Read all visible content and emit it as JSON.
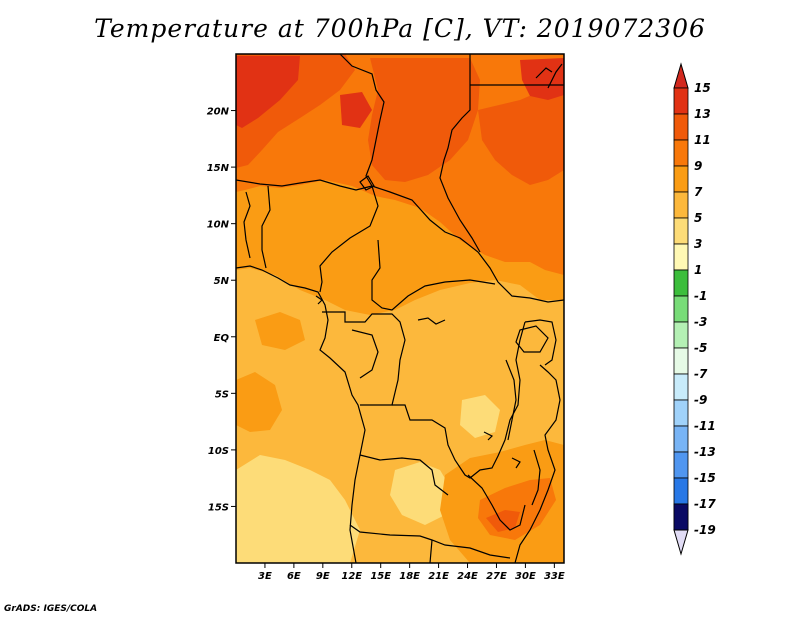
{
  "title": "Temperature at 700hPa [C], VT: 2019072306",
  "credit": "GrADS: IGES/COLA",
  "map": {
    "lon_range": [
      0,
      34
    ],
    "lat_range": [
      -20,
      25
    ],
    "lon_ticks": [
      {
        "value": 3,
        "label": "3E"
      },
      {
        "value": 6,
        "label": "6E"
      },
      {
        "value": 9,
        "label": "9E"
      },
      {
        "value": 12,
        "label": "12E"
      },
      {
        "value": 15,
        "label": "15E"
      },
      {
        "value": 18,
        "label": "18E"
      },
      {
        "value": 21,
        "label": "21E"
      },
      {
        "value": 24,
        "label": "24E"
      },
      {
        "value": 27,
        "label": "27E"
      },
      {
        "value": 30,
        "label": "30E"
      },
      {
        "value": 33,
        "label": "33E"
      }
    ],
    "lat_ticks": [
      {
        "value": 20,
        "label": "20N"
      },
      {
        "value": 15,
        "label": "15N"
      },
      {
        "value": 10,
        "label": "10N"
      },
      {
        "value": 5,
        "label": "5N"
      },
      {
        "value": 0,
        "label": "EQ"
      },
      {
        "value": -5,
        "label": "5S"
      },
      {
        "value": -10,
        "label": "10S"
      },
      {
        "value": -15,
        "label": "15S"
      }
    ]
  },
  "colorbar": {
    "levels": [
      {
        "label": "15",
        "color": "#e13214"
      },
      {
        "label": "13",
        "color": "#f05a0a"
      },
      {
        "label": "11",
        "color": "#f8780a"
      },
      {
        "label": "9",
        "color": "#fa9c14"
      },
      {
        "label": "7",
        "color": "#fcb83c"
      },
      {
        "label": "5",
        "color": "#fddc78"
      },
      {
        "label": "3",
        "color": "#fff8b4"
      },
      {
        "label": "1",
        "color": "#3cbe3c"
      },
      {
        "label": "-1",
        "color": "#78dc78"
      },
      {
        "label": "-3",
        "color": "#b4f0b4"
      },
      {
        "label": "-5",
        "color": "#e6fae6"
      },
      {
        "label": "-7",
        "color": "#c8ebfa"
      },
      {
        "label": "-9",
        "color": "#a0d2fa"
      },
      {
        "label": "-11",
        "color": "#78b4f5"
      },
      {
        "label": "-13",
        "color": "#5096f0"
      },
      {
        "label": "-15",
        "color": "#2878e6"
      },
      {
        "label": "-17",
        "color": "#1450c8"
      },
      {
        "label": "-19",
        "color": "#0a28a0"
      }
    ],
    "top_color": "#d2281e",
    "bottom_color": "#0a0a64",
    "bottom_arrow_color": "#e1dcf5"
  }
}
